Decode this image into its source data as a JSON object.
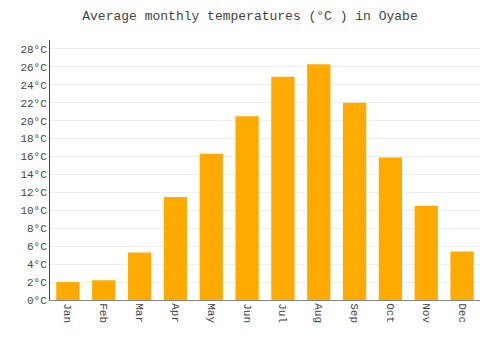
{
  "chart_data": {
    "type": "bar",
    "title": "Average monthly temperatures (°C ) in Oyabe",
    "categories": [
      "Jan",
      "Feb",
      "Mar",
      "Apr",
      "May",
      "Jun",
      "Jul",
      "Aug",
      "Sep",
      "Oct",
      "Nov",
      "Dec"
    ],
    "values": [
      2.0,
      2.2,
      5.3,
      11.5,
      16.3,
      20.5,
      24.9,
      26.3,
      22.0,
      15.9,
      10.5,
      5.4
    ],
    "color": "#FFAA00",
    "ylim": [
      0,
      29
    ],
    "yticks": [
      {
        "value": 0,
        "label": "0°C"
      },
      {
        "value": 2,
        "label": "2°C"
      },
      {
        "value": 4,
        "label": "4°C"
      },
      {
        "value": 6,
        "label": "6°C"
      },
      {
        "value": 8,
        "label": "8°C"
      },
      {
        "value": 10,
        "label": "10°C"
      },
      {
        "value": 12,
        "label": "12°C"
      },
      {
        "value": 14,
        "label": "14°C"
      },
      {
        "value": 16,
        "label": "16°C"
      },
      {
        "value": 18,
        "label": "18°C"
      },
      {
        "value": 20,
        "label": "20°C"
      },
      {
        "value": 22,
        "label": "22°C"
      },
      {
        "value": 24,
        "label": "24°C"
      },
      {
        "value": 26,
        "label": "26°C"
      },
      {
        "value": 28,
        "label": "28°C"
      }
    ],
    "grid": true
  }
}
